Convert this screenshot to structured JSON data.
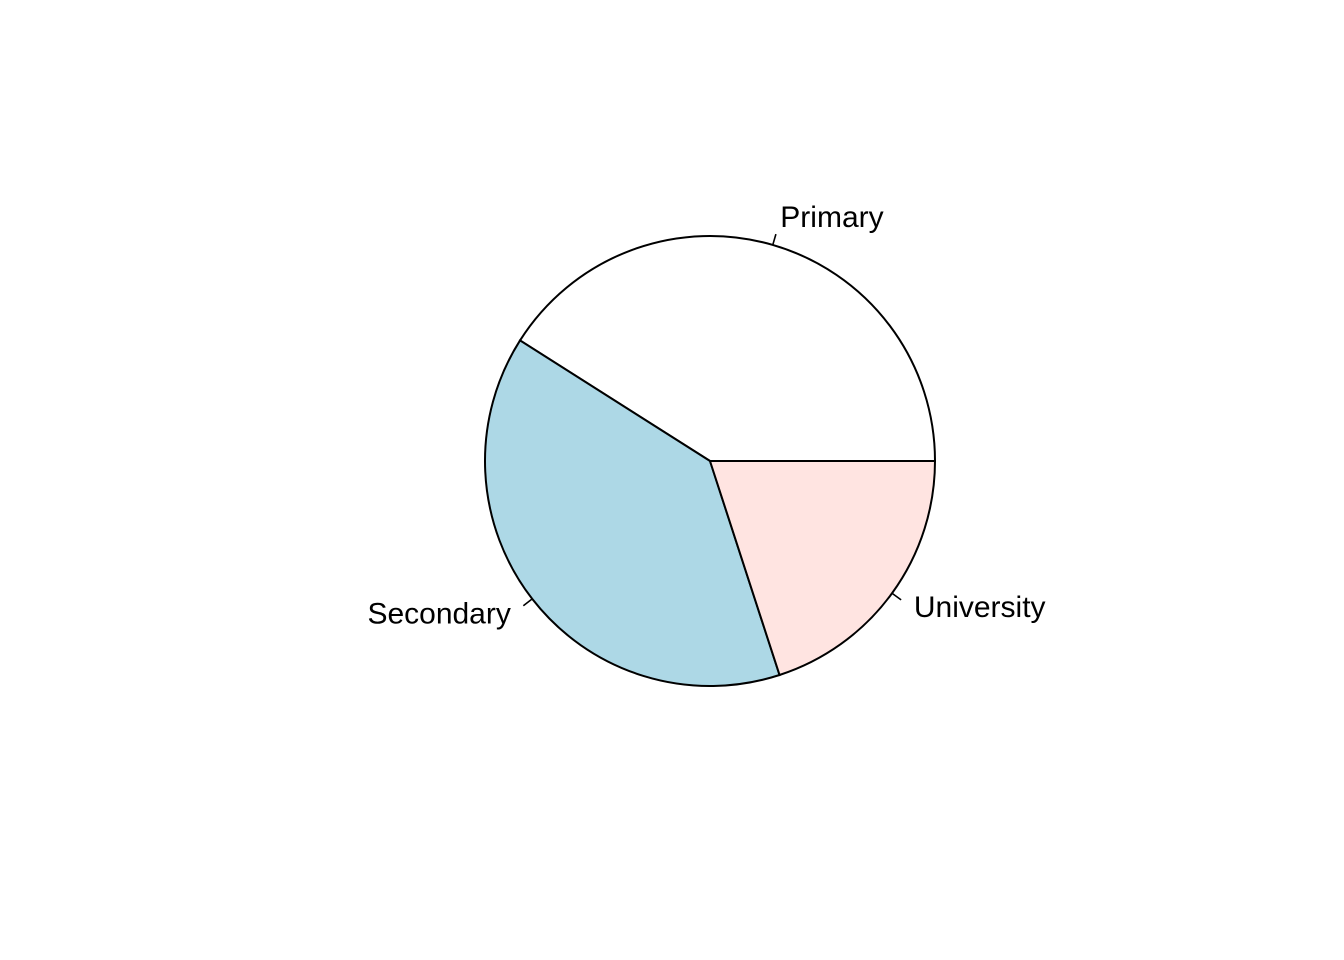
{
  "chart_data": {
    "type": "pie",
    "categories": [
      "Primary",
      "Secondary",
      "University"
    ],
    "values": [
      41,
      39,
      20
    ],
    "colors": [
      "#ffffff",
      "#add8e6",
      "#ffe4e1"
    ],
    "start_angle_deg": 0,
    "direction": "counterclockwise",
    "title": "",
    "legend": "none"
  }
}
